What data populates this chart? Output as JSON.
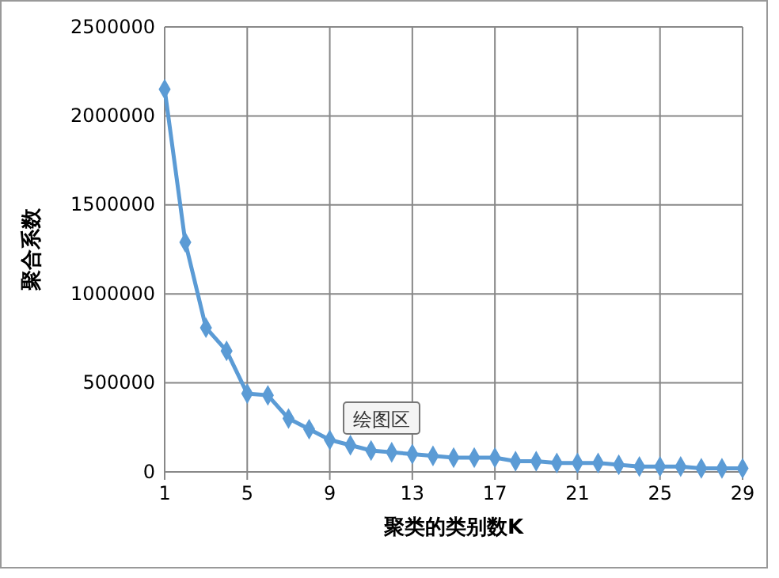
{
  "chart_data": {
    "type": "line",
    "xlabel": "聚类的类别数K",
    "ylabel": "聚合系数",
    "categories": [
      "1",
      null,
      null,
      null,
      "5",
      null,
      null,
      null,
      "9",
      null,
      null,
      null,
      "13",
      null,
      null,
      null,
      "17",
      null,
      null,
      null,
      "21",
      null,
      null,
      null,
      "25",
      null,
      null,
      null,
      "29"
    ],
    "series": [
      {
        "color": "#5b9bd5",
        "values": [
          2150000,
          1290000,
          810000,
          680000,
          440000,
          430000,
          300000,
          240000,
          180000,
          150000,
          120000,
          110000,
          100000,
          90000,
          80000,
          80000,
          80000,
          60000,
          60000,
          50000,
          50000,
          50000,
          40000,
          30000,
          30000,
          30000,
          20000,
          20000,
          20000
        ]
      }
    ],
    "ylim": [
      0,
      2500000
    ],
    "yticks": [
      0,
      500000,
      1000000,
      1500000,
      2000000,
      2500000
    ],
    "grid": true,
    "marker": "diamond",
    "line_style": "solid",
    "annotations": [
      "绘图区"
    ]
  }
}
